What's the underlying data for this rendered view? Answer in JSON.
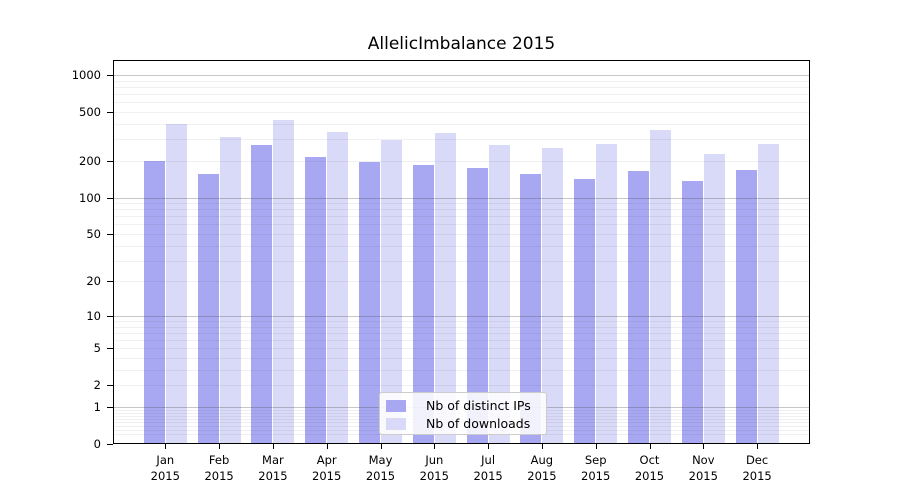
{
  "chart_data": {
    "type": "bar",
    "title": "AllelicImbalance 2015",
    "categories": [
      "Jan",
      "Feb",
      "Mar",
      "Apr",
      "May",
      "Jun",
      "Jul",
      "Aug",
      "Sep",
      "Oct",
      "Nov",
      "Dec"
    ],
    "category_year": "2015",
    "series": [
      {
        "name": "Nb of distinct IPs",
        "color": "#a8a8f2",
        "values": [
          199,
          157,
          270,
          216,
          195,
          183,
          174,
          156,
          143,
          164,
          137,
          167
        ]
      },
      {
        "name": "Nb of downloads",
        "color": "#d9d9f8",
        "values": [
          399,
          313,
          428,
          346,
          298,
          336,
          270,
          254,
          275,
          357,
          228,
          274
        ]
      }
    ],
    "y_axis": {
      "scale": "log1p",
      "ticks": [
        0,
        1,
        2,
        5,
        10,
        20,
        50,
        100,
        200,
        500,
        1000
      ],
      "major_gridlines": [
        1,
        10,
        100,
        1000
      ],
      "minor_gridline_decades": [
        0.1,
        1,
        10,
        100
      ],
      "range": [
        0,
        1320
      ]
    },
    "grid": true,
    "legend_position": "bottom-center"
  }
}
